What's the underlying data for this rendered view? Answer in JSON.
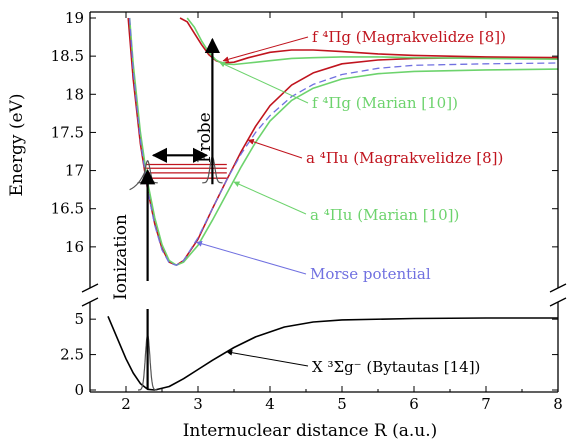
{
  "chart_data": {
    "type": "line",
    "xlabel": "Internuclear distance R (a.u.)",
    "ylabel": "Energy (eV)",
    "xlim": [
      1.5,
      8
    ],
    "ylim_upper": [
      15.5,
      19
    ],
    "ylim_lower": [
      0,
      6
    ],
    "axis_break": true,
    "grid": false,
    "x_ticks": [
      "2",
      "3",
      "4",
      "5",
      "6",
      "7",
      "8"
    ],
    "y_ticks_upper": [
      "16",
      "16.5",
      "17",
      "17.5",
      "18",
      "18.5",
      "19"
    ],
    "y_ticks_lower": [
      "0",
      "2.5",
      "5"
    ],
    "series": [
      {
        "name": "X ³Σg⁻ (Bytautas [14])",
        "color": "#000000",
        "panel": "lower",
        "x": [
          1.75,
          1.9,
          2.0,
          2.1,
          2.2,
          2.3,
          2.4,
          2.6,
          2.8,
          3.0,
          3.2,
          3.5,
          3.8,
          4.2,
          4.6,
          5.0,
          6.0,
          7.0,
          8.0
        ],
        "y": [
          5.2,
          3.4,
          2.2,
          1.2,
          0.45,
          0.05,
          0.0,
          0.25,
          0.8,
          1.45,
          2.1,
          3.0,
          3.75,
          4.45,
          4.8,
          4.95,
          5.05,
          5.08,
          5.08
        ]
      },
      {
        "name": "a ⁴Πu (Magrakvelidze [8])",
        "color": "#c0141e",
        "panel": "upper",
        "x": [
          2.03,
          2.1,
          2.2,
          2.3,
          2.4,
          2.5,
          2.6,
          2.7,
          2.8,
          3.0,
          3.2,
          3.4,
          3.6,
          3.8,
          4.0,
          4.3,
          4.6,
          5.0,
          5.5,
          6.0,
          7.0,
          8.0
        ],
        "y": [
          19.0,
          18.2,
          17.35,
          16.75,
          16.3,
          15.98,
          15.8,
          15.76,
          15.82,
          16.1,
          16.5,
          16.88,
          17.25,
          17.58,
          17.85,
          18.12,
          18.28,
          18.4,
          18.45,
          18.47,
          18.48,
          18.48
        ]
      },
      {
        "name": "a ⁴Πu (Marian [10])",
        "color": "#6dd36d",
        "panel": "upper",
        "x": [
          2.05,
          2.1,
          2.2,
          2.3,
          2.4,
          2.5,
          2.6,
          2.7,
          2.8,
          3.0,
          3.2,
          3.4,
          3.6,
          3.8,
          4.0,
          4.3,
          4.6,
          5.0,
          5.5,
          6.0,
          7.0,
          8.0
        ],
        "y": [
          19.0,
          18.4,
          17.5,
          16.85,
          16.38,
          16.03,
          15.82,
          15.76,
          15.8,
          16.02,
          16.35,
          16.7,
          17.05,
          17.37,
          17.65,
          17.92,
          18.08,
          18.2,
          18.27,
          18.3,
          18.32,
          18.33
        ]
      },
      {
        "name": "Morse potential",
        "color": "#7070e0",
        "panel": "upper",
        "dashed": true,
        "x": [
          2.05,
          2.1,
          2.2,
          2.3,
          2.4,
          2.5,
          2.6,
          2.7,
          2.8,
          3.0,
          3.2,
          3.4,
          3.6,
          3.8,
          4.0,
          4.3,
          4.6,
          5.0,
          5.5,
          6.0,
          7.0,
          8.0
        ],
        "y": [
          19.0,
          18.3,
          17.4,
          16.75,
          16.28,
          15.96,
          15.79,
          15.76,
          15.82,
          16.12,
          16.5,
          16.88,
          17.22,
          17.5,
          17.72,
          17.97,
          18.13,
          18.26,
          18.34,
          18.38,
          18.4,
          18.41
        ]
      },
      {
        "name": "f ⁴Πg (Magrakvelidze [8])",
        "color": "#c0141e",
        "panel": "upper",
        "x": [
          2.75,
          2.85,
          2.95,
          3.05,
          3.15,
          3.25,
          3.35,
          3.5,
          3.7,
          4.0,
          4.3,
          4.6,
          5.0,
          5.5,
          6.0,
          7.0,
          8.0
        ],
        "y": [
          19.0,
          18.95,
          18.8,
          18.65,
          18.52,
          18.44,
          18.41,
          18.42,
          18.48,
          18.55,
          18.58,
          18.58,
          18.56,
          18.53,
          18.51,
          18.49,
          18.48
        ]
      },
      {
        "name": "f ⁴Πg (Marian [10])",
        "color": "#6dd36d",
        "panel": "upper",
        "x": [
          2.85,
          2.95,
          3.05,
          3.15,
          3.25,
          3.35,
          3.5,
          3.7,
          4.0,
          4.3,
          4.6,
          5.0,
          5.5,
          6.0,
          7.0,
          8.0
        ],
        "y": [
          19.0,
          18.88,
          18.7,
          18.55,
          18.45,
          18.4,
          18.39,
          18.41,
          18.44,
          18.47,
          18.48,
          18.49,
          18.49,
          18.48,
          18.47,
          18.46
        ]
      }
    ],
    "vibrational_levels": {
      "color": "#c0141e",
      "x_range": [
        2.25,
        3.4
      ],
      "y": [
        16.9,
        16.97,
        17.03,
        17.08
      ]
    },
    "annotations": [
      {
        "text": "Ionization",
        "color": "#000000"
      },
      {
        "text": "Probe",
        "color": "#000000"
      },
      {
        "text": "f ⁴Πg (Magrakvelidze [8])",
        "color": "#c0141e"
      },
      {
        "text": "f ⁴Πg (Marian [10])",
        "color": "#6dd36d"
      },
      {
        "text": "a ⁴Πu (Magrakvelidze [8])",
        "color": "#c0141e"
      },
      {
        "text": "a ⁴Πu (Marian [10])",
        "color": "#6dd36d"
      },
      {
        "text": "Morse potential",
        "color": "#7070e0"
      },
      {
        "text": "X ³Σg⁻ (Bytautas [14])",
        "color": "#000000"
      }
    ]
  }
}
